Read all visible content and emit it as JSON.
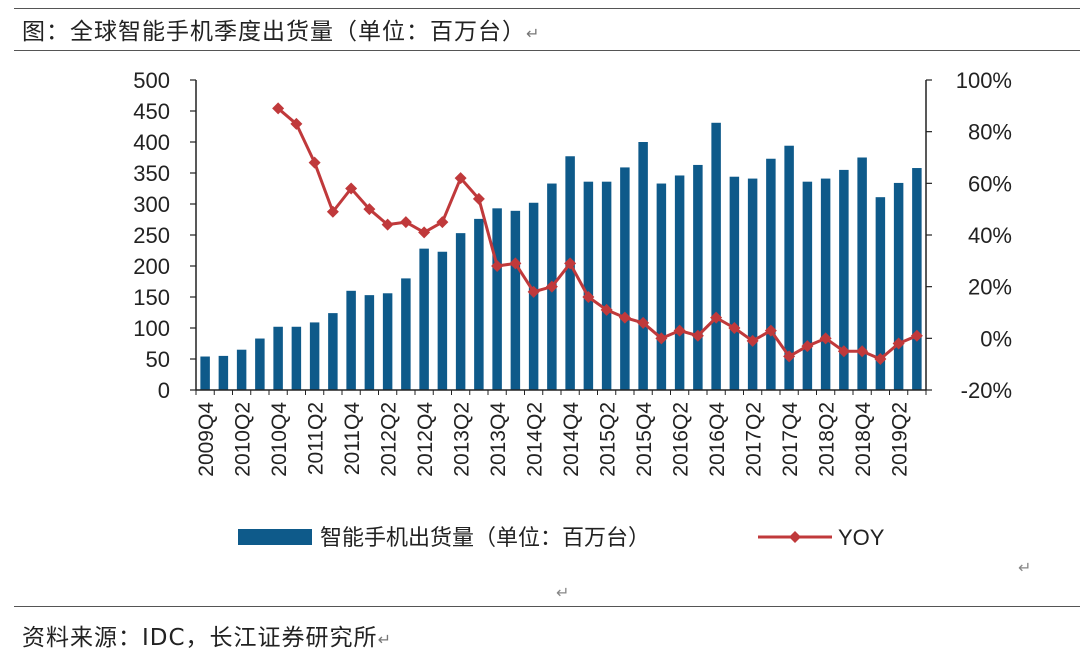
{
  "caption": {
    "title": "图：全球智能手机季度出货量（单位：百万台）",
    "source": "资料来源：IDC，长江证券研究所",
    "return_mark": "↵"
  },
  "colors": {
    "bar": "#0e5a8a",
    "line": "#c0393b",
    "axis": "#222222"
  },
  "chart_data": {
    "type": "bar+line",
    "title": "",
    "categories": [
      "2009Q4",
      "2010Q1",
      "2010Q2",
      "2010Q3",
      "2010Q4",
      "2011Q1",
      "2011Q2",
      "2011Q3",
      "2011Q4",
      "2012Q1",
      "2012Q2",
      "2012Q3",
      "2012Q4",
      "2013Q1",
      "2013Q2",
      "2013Q3",
      "2013Q4",
      "2014Q1",
      "2014Q2",
      "2014Q3",
      "2014Q4",
      "2015Q1",
      "2015Q2",
      "2015Q3",
      "2015Q4",
      "2016Q1",
      "2016Q2",
      "2016Q3",
      "2016Q4",
      "2017Q1",
      "2017Q2",
      "2017Q3",
      "2017Q4",
      "2018Q1",
      "2018Q2",
      "2018Q3",
      "2018Q4",
      "2019Q1",
      "2019Q2",
      "2019Q3"
    ],
    "x_tick_labels": [
      "2009Q4",
      "2010Q2",
      "2010Q4",
      "2011Q2",
      "2011Q4",
      "2012Q2",
      "2012Q4",
      "2013Q2",
      "2013Q4",
      "2014Q2",
      "2014Q4",
      "2015Q2",
      "2015Q4",
      "2016Q2",
      "2016Q4",
      "2017Q2",
      "2017Q4",
      "2018Q2",
      "2018Q4",
      "2019Q2"
    ],
    "series": [
      {
        "name": "智能手机出货量（单位：百万台）",
        "type": "bar",
        "axis": "left",
        "values": [
          54,
          55,
          65,
          83,
          102,
          102,
          109,
          124,
          160,
          153,
          156,
          180,
          228,
          223,
          253,
          276,
          293,
          289,
          302,
          333,
          377,
          336,
          336,
          359,
          400,
          333,
          346,
          363,
          431,
          344,
          341,
          373,
          394,
          336,
          341,
          355,
          375,
          311,
          334,
          358
        ]
      },
      {
        "name": "YOY",
        "type": "line",
        "axis": "right",
        "start_index": 4,
        "values_percent": [
          89,
          83,
          68,
          49,
          58,
          50,
          44,
          45,
          41,
          45,
          62,
          54,
          28,
          29,
          18,
          20,
          29,
          16,
          11,
          8,
          6,
          0,
          3,
          1,
          8,
          4,
          -1,
          3,
          -7,
          -3,
          0,
          -5,
          -5,
          -8,
          -2,
          1
        ]
      }
    ],
    "y_left": {
      "min": 0,
      "max": 500,
      "ticks": [
        0,
        50,
        100,
        150,
        200,
        250,
        300,
        350,
        400,
        450,
        500
      ]
    },
    "y_right": {
      "min": -20,
      "max": 100,
      "ticks": [
        "-20%",
        "0%",
        "20%",
        "40%",
        "60%",
        "80%",
        "100%"
      ],
      "tick_values": [
        -20,
        0,
        20,
        40,
        60,
        80,
        100
      ]
    },
    "legend": {
      "position": "bottom",
      "entries": [
        "智能手机出货量（单位：百万台）",
        "YOY"
      ]
    }
  }
}
